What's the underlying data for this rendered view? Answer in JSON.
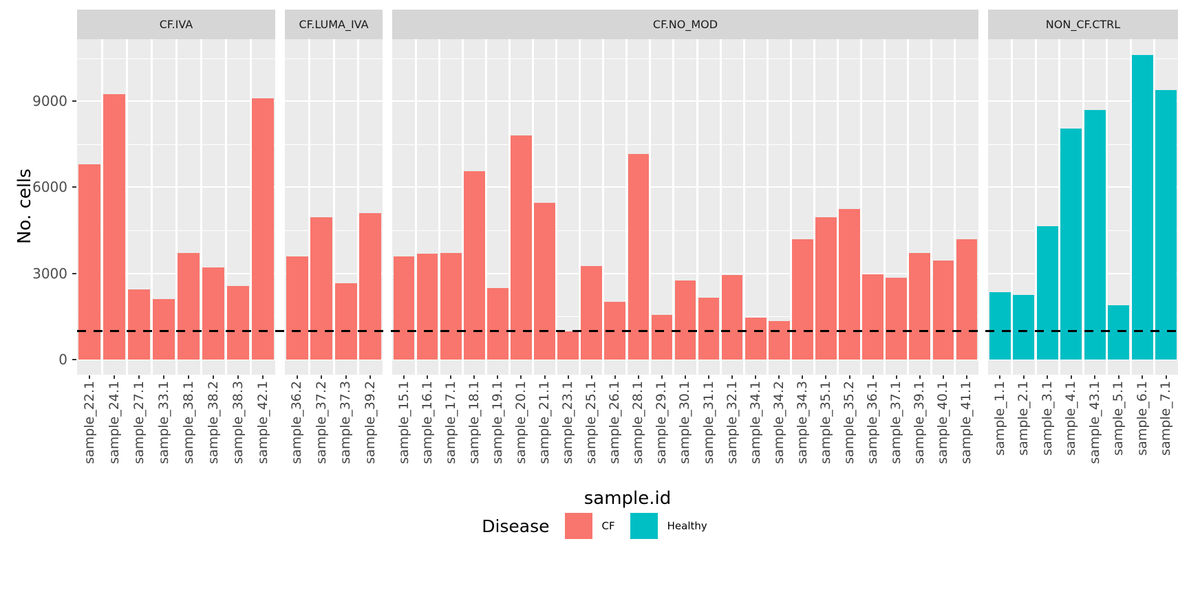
{
  "colors": {
    "cf": "#F8766D",
    "healthy": "#00BFC4",
    "panel_background": "#EBEBEB",
    "strip_background": "#D6D6D6",
    "gridline": "#FFFFFF",
    "axis_text": "#4D4D4D",
    "dashed_line": "#000000"
  },
  "chart_data": {
    "type": "bar",
    "title": "",
    "xlabel": "sample.id",
    "ylabel": "No. cells",
    "ylim": [
      -530,
      11160
    ],
    "yticks": [
      0,
      3000,
      6000,
      9000
    ],
    "minor_yticks": [
      1500,
      4500,
      7500,
      10500
    ],
    "grid": true,
    "legend_position": "bottom",
    "reference_line": {
      "y": 1000,
      "style": "dashed",
      "color": "#000000"
    },
    "legend": {
      "title": "Disease",
      "items": [
        {
          "label": "CF",
          "color": "#F8766D"
        },
        {
          "label": "Healthy",
          "color": "#00BFC4"
        }
      ]
    },
    "facets": [
      {
        "strip": "CF.IVA",
        "disease": "CF",
        "color": "#F8766D",
        "categories": [
          "sample_22.1",
          "sample_24.1",
          "sample_27.1",
          "sample_33.1",
          "sample_38.1",
          "sample_38.2",
          "sample_38.3",
          "sample_42.1"
        ],
        "values": [
          6800,
          9250,
          2450,
          2100,
          3700,
          3200,
          2550,
          9100
        ]
      },
      {
        "strip": "CF.LUMA_IVA",
        "disease": "CF",
        "color": "#F8766D",
        "categories": [
          "sample_36.2",
          "sample_37.2",
          "sample_37.3",
          "sample_39.2"
        ],
        "values": [
          3600,
          4950,
          2650,
          5100
        ]
      },
      {
        "strip": "CF.NO_MOD",
        "disease": "CF",
        "color": "#F8766D",
        "categories": [
          "sample_15.1",
          "sample_16.1",
          "sample_17.1",
          "sample_18.1",
          "sample_19.1",
          "sample_20.1",
          "sample_21.1",
          "sample_23.1",
          "sample_25.1",
          "sample_26.1",
          "sample_28.1",
          "sample_29.1",
          "sample_30.1",
          "sample_31.1",
          "sample_32.1",
          "sample_34.1",
          "sample_34.2",
          "sample_34.3",
          "sample_35.1",
          "sample_35.2",
          "sample_36.1",
          "sample_37.1",
          "sample_39.1",
          "sample_40.1",
          "sample_41.1"
        ],
        "values": [
          3600,
          3680,
          3720,
          6550,
          2500,
          7800,
          5450,
          990,
          3250,
          2000,
          7150,
          1550,
          2750,
          2150,
          2950,
          1450,
          1350,
          4200,
          4950,
          5250,
          2970,
          2850,
          3700,
          3450,
          4200
        ]
      },
      {
        "strip": "NON_CF.CTRL",
        "disease": "Healthy",
        "color": "#00BFC4",
        "categories": [
          "sample_1.1",
          "sample_2.1",
          "sample_3.1",
          "sample_4.1",
          "sample_43.1",
          "sample_5.1",
          "sample_6.1",
          "sample_7.1"
        ],
        "values": [
          2350,
          2250,
          4650,
          8050,
          8700,
          1900,
          10600,
          9400
        ]
      }
    ]
  }
}
